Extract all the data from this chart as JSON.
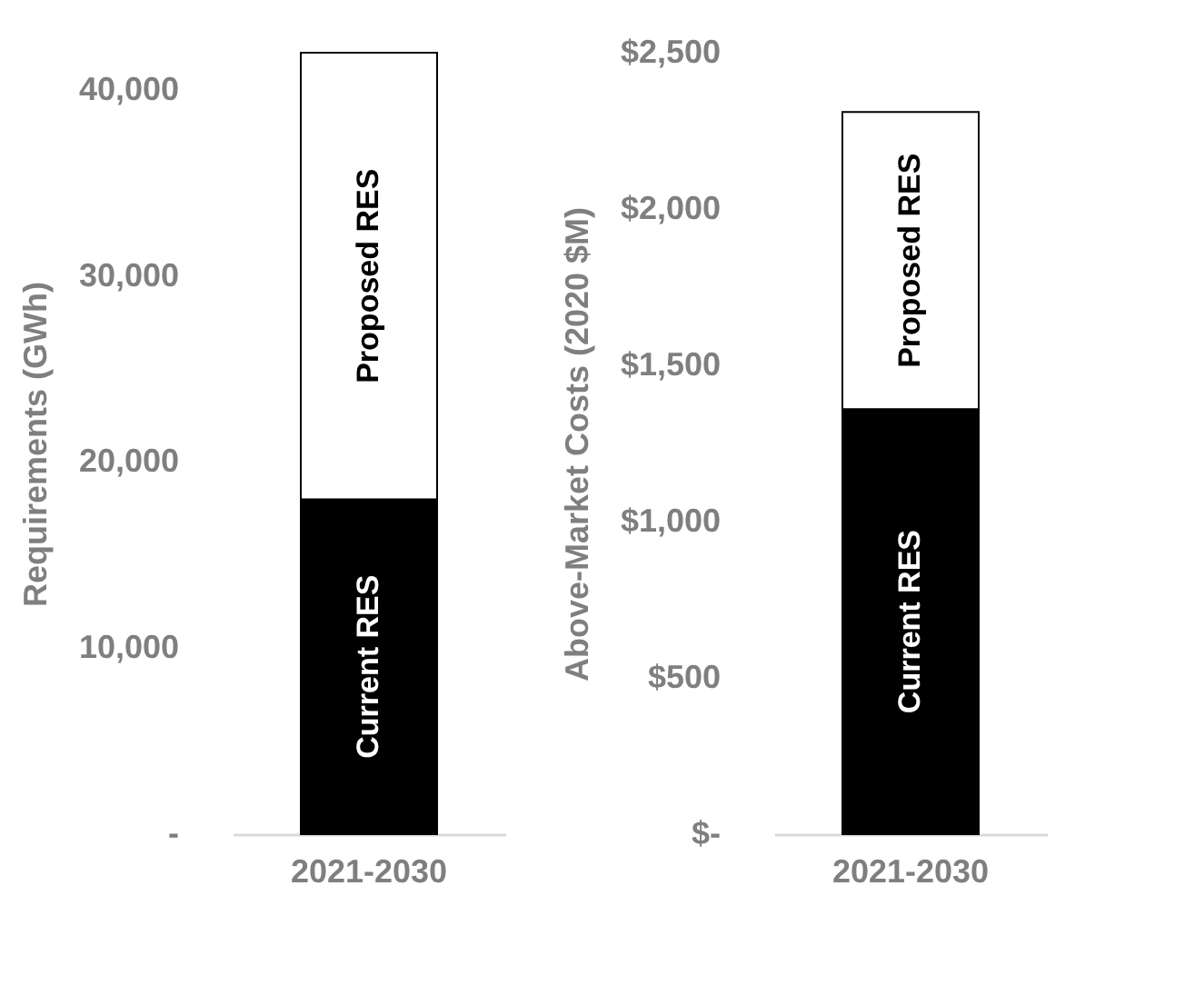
{
  "chart_data": [
    {
      "type": "bar",
      "stacked": true,
      "ylabel": "Requirements (GWh)",
      "categories": [
        "2021-2030"
      ],
      "ylim": [
        0,
        42000
      ],
      "yticks": [
        {
          "value": 0,
          "label": "-"
        },
        {
          "value": 10000,
          "label": "10,000"
        },
        {
          "value": 20000,
          "label": "20,000"
        },
        {
          "value": 30000,
          "label": "30,000"
        },
        {
          "value": 40000,
          "label": "40,000"
        }
      ],
      "grid": false,
      "legend": false,
      "series": [
        {
          "name": "Current RES",
          "color": "#000000",
          "values": [
            18000
          ]
        },
        {
          "name": "Proposed RES",
          "color": "#ffffff",
          "values": [
            24000
          ]
        }
      ]
    },
    {
      "type": "bar",
      "stacked": true,
      "ylabel": "Above-Market Costs (2020 $M)",
      "categories": [
        "2021-2030"
      ],
      "ylim": [
        0,
        2500
      ],
      "yticks": [
        {
          "value": 0,
          "label": "$-"
        },
        {
          "value": 500,
          "label": "$500"
        },
        {
          "value": 1000,
          "label": "$1,000"
        },
        {
          "value": 1500,
          "label": "$1,500"
        },
        {
          "value": 2000,
          "label": "$2,000"
        },
        {
          "value": 2500,
          "label": "$2,500"
        }
      ],
      "grid": false,
      "legend": false,
      "series": [
        {
          "name": "Current RES",
          "color": "#000000",
          "values": [
            1360
          ]
        },
        {
          "name": "Proposed RES",
          "color": "#ffffff",
          "values": [
            950
          ]
        }
      ]
    }
  ]
}
